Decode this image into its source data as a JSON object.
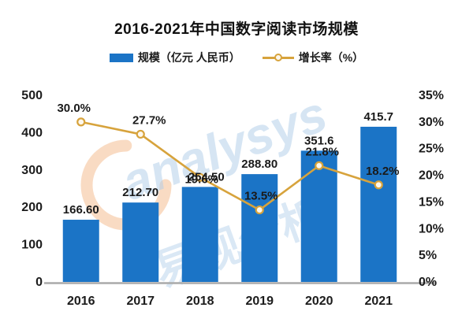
{
  "title": "2016-2021年中国数字阅读市场规模",
  "legend": {
    "scale_label": "规模（亿元 人民币）",
    "growth_label": "增长率（%）"
  },
  "watermark": {
    "brand_text": "analysys",
    "brand_cn": "易观分析"
  },
  "colors": {
    "bar": "#1b74c6",
    "line": "#d7a33c",
    "marker_fill": "#fdf8ee",
    "axis_line": "#aaaaaa",
    "label_text": "#1a1a1a",
    "tick_text": "#1c1c1c",
    "watermark_blue": "#aecde9",
    "watermark_orange": "#f2b079"
  },
  "chart_data": {
    "type": "combo (bar + line)",
    "title": "2016-2021年中国数字阅读市场规模",
    "categories": [
      "2016",
      "2017",
      "2018",
      "2019",
      "2020",
      "2021"
    ],
    "series": [
      {
        "name": "规模（亿元 人民币）",
        "type": "bar",
        "axis": "left",
        "values": [
          166.6,
          212.7,
          254.5,
          288.8,
          351.6,
          415.7
        ],
        "labels": [
          "166.60",
          "212.70",
          "254.50",
          "288.80",
          "351.6",
          "415.7"
        ]
      },
      {
        "name": "增长率（%）",
        "type": "line",
        "axis": "right",
        "values": [
          30.0,
          27.7,
          19.6,
          13.5,
          21.8,
          18.2
        ],
        "labels": [
          "30.0%",
          "27.7%",
          "19.6%",
          "13.5%",
          "21.8%",
          "18.2%"
        ]
      }
    ],
    "left_axis": {
      "min": 0,
      "max": 500,
      "tick_step": 100,
      "ticks": [
        "0",
        "100",
        "200",
        "300",
        "400",
        "500"
      ]
    },
    "right_axis": {
      "min": 0,
      "max": 35,
      "tick_step": 5,
      "ticks": [
        "0%",
        "5%",
        "10%",
        "15%",
        "20%",
        "25%",
        "30%",
        "35%"
      ]
    },
    "grid": false,
    "legend_position": "top",
    "note": "2018 growth label (19.6%) overlaps the 254.50 bar label in the source image"
  }
}
